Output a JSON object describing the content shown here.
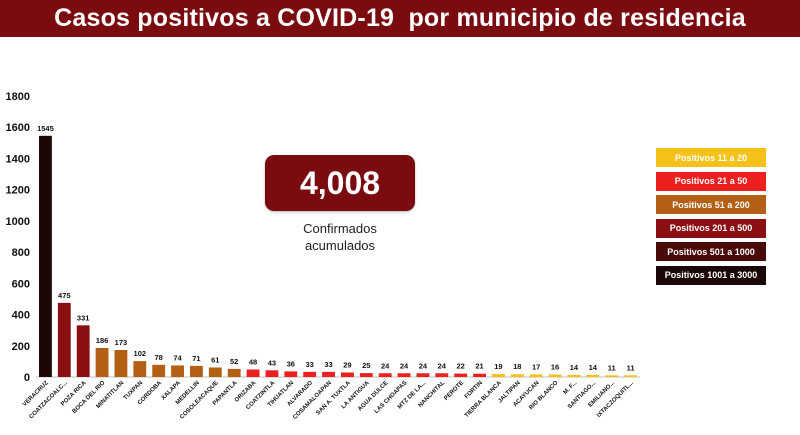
{
  "title": "Casos positivos a COVID-19  por municipio de residencia",
  "total": {
    "value": "4,008",
    "label_line1": "Confirmados",
    "label_line2": "acumulados"
  },
  "legend": [
    {
      "label": "Positivos 11 a 20",
      "color": "#f6c21a",
      "text_color": "#ffffff"
    },
    {
      "label": "Positivos 21 a 50",
      "color": "#ee1f1f",
      "text_color": "#ffffff"
    },
    {
      "label": "Positivos 51 a 200",
      "color": "#b35f14",
      "text_color": "#ffffff"
    },
    {
      "label": "Positivos 201 a 500",
      "color": "#8b0f12",
      "text_color": "#ffffff"
    },
    {
      "label": "Positivos 501 a 1000",
      "color": "#4a0a0a",
      "text_color": "#ffffff"
    },
    {
      "label": "Positivos 1001 a 3000",
      "color": "#1c0707",
      "text_color": "#ffffff"
    }
  ],
  "chart_data": {
    "type": "bar",
    "categories": [
      "VERACRUZ",
      "COATZACOALC...",
      "POZA RICA",
      "BOCA DEL RIO",
      "MINATITLAN",
      "TUXPAN",
      "CORDOBA",
      "XALAPA",
      "MEDELLIN",
      "COSOLEACAQUE",
      "PAPANTLA",
      "ORIZABA",
      "COATZINTLA",
      "TIHUATLAN",
      "ALVARADO",
      "COSAMALOAPAN",
      "SAN A. TUXTLA",
      "LA ANTIGUA",
      "AGUA DULCE",
      "LAS CHOAPAS",
      "MTZ DE LA...",
      "NANCHITAL",
      "PEROTE",
      "FORTIN",
      "TIERRA BLANCA",
      "JALTIPAN",
      "ACAYUCAN",
      "RIO BLANCO",
      "M. F...",
      "SANTIAGO...",
      "EMILIANO...",
      "IXTACZOQUITL..."
    ],
    "values": [
      1545,
      475,
      331,
      186,
      173,
      102,
      78,
      74,
      71,
      61,
      52,
      48,
      43,
      36,
      33,
      33,
      29,
      25,
      24,
      24,
      24,
      24,
      22,
      21,
      19,
      18,
      17,
      16,
      14,
      14,
      11,
      11
    ],
    "value_labels": [
      "1545",
      "475",
      "331",
      "186",
      "173",
      "102",
      "78",
      "74",
      "71",
      "61",
      "52",
      "48",
      "43",
      "36",
      "33",
      "33",
      "29",
      "25",
      "24",
      "24",
      "24",
      "24",
      "22",
      "21",
      "19",
      "18",
      "17",
      "16",
      "14",
      "14",
      "11",
      "11"
    ],
    "yticks": [
      "0",
      "200",
      "400",
      "600",
      "800",
      "1000",
      "1200",
      "1400",
      "1600",
      "1800"
    ],
    "ylim": [
      0,
      1800
    ],
    "grid": false,
    "legend_position": "right"
  }
}
